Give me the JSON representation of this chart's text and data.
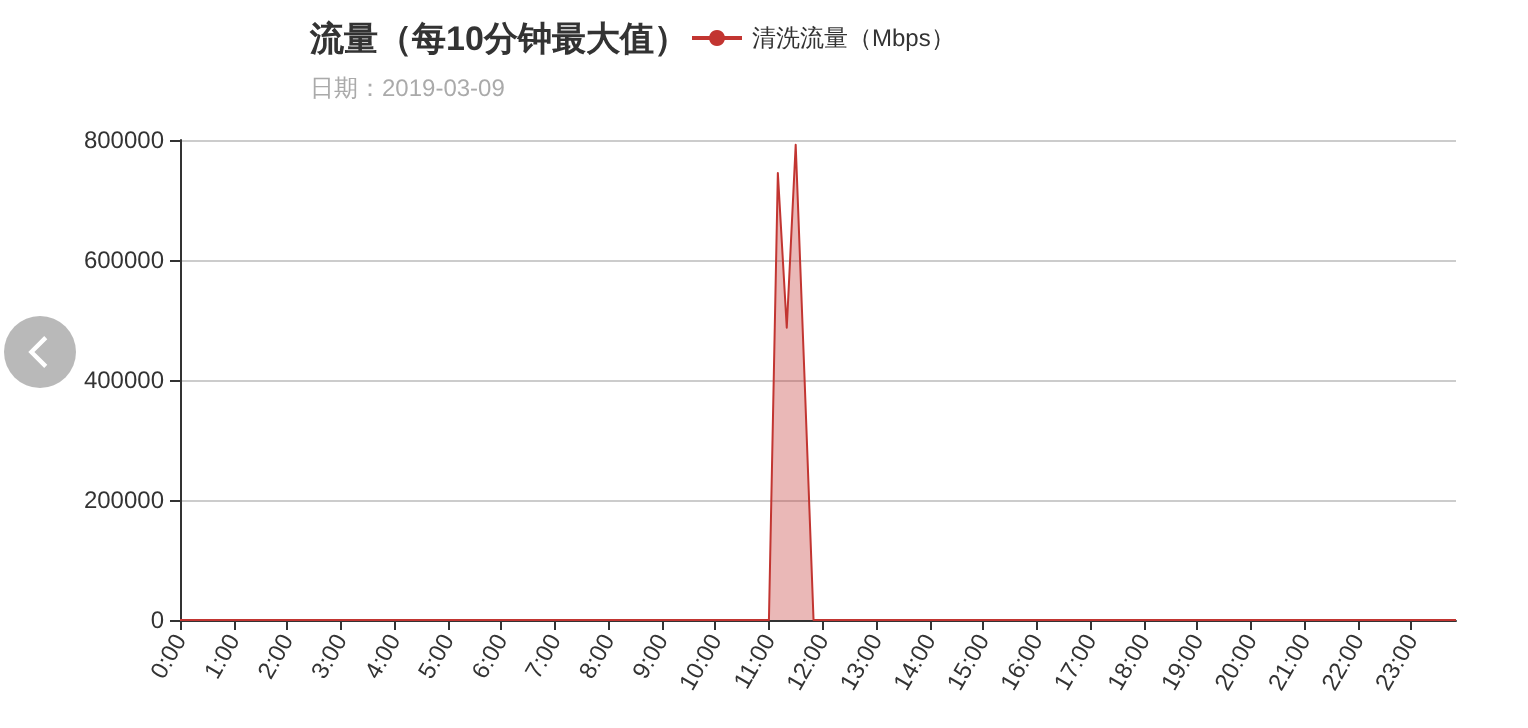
{
  "chart_data": {
    "type": "area",
    "title": "流量（每10分钟最大值）",
    "subtitle": "日期：2019-03-09",
    "categories": [
      "0:00",
      null,
      null,
      null,
      null,
      null,
      "1:00",
      null,
      null,
      null,
      null,
      null,
      "2:00",
      null,
      null,
      null,
      null,
      null,
      "3:00",
      null,
      null,
      null,
      null,
      null,
      "4:00",
      null,
      null,
      null,
      null,
      null,
      "5:00",
      null,
      null,
      null,
      null,
      null,
      "6:00",
      null,
      null,
      null,
      null,
      null,
      "7:00",
      null,
      null,
      null,
      null,
      null,
      "8:00",
      null,
      null,
      null,
      null,
      null,
      "9:00",
      null,
      null,
      null,
      null,
      null,
      "10:00",
      null,
      null,
      null,
      null,
      null,
      "11:00",
      null,
      null,
      null,
      null,
      null,
      "12:00",
      null,
      null,
      null,
      null,
      null,
      "13:00",
      null,
      null,
      null,
      null,
      null,
      "14:00",
      null,
      null,
      null,
      null,
      null,
      "15:00",
      null,
      null,
      null,
      null,
      null,
      "16:00",
      null,
      null,
      null,
      null,
      null,
      "17:00",
      null,
      null,
      null,
      null,
      null,
      "18:00",
      null,
      null,
      null,
      null,
      null,
      "19:00",
      null,
      null,
      null,
      null,
      null,
      "20:00",
      null,
      null,
      null,
      null,
      null,
      "21:00",
      null,
      null,
      null,
      null,
      null,
      "22:00",
      null,
      null,
      null,
      null,
      null,
      "23:00",
      null,
      null,
      null,
      null,
      null
    ],
    "series": [
      {
        "name": "清洗流量（Mbps）",
        "color": "#c23531",
        "values": [
          0,
          0,
          0,
          0,
          0,
          0,
          0,
          0,
          0,
          0,
          0,
          0,
          0,
          0,
          0,
          0,
          0,
          0,
          0,
          0,
          0,
          0,
          0,
          0,
          0,
          0,
          0,
          0,
          0,
          0,
          0,
          0,
          0,
          0,
          0,
          0,
          0,
          0,
          0,
          0,
          0,
          0,
          0,
          0,
          0,
          0,
          0,
          0,
          0,
          0,
          0,
          0,
          0,
          0,
          0,
          0,
          0,
          0,
          0,
          0,
          0,
          0,
          0,
          0,
          0,
          0,
          0,
          745000,
          487000,
          792000,
          400000,
          0,
          0,
          0,
          0,
          0,
          0,
          0,
          0,
          0,
          0,
          0,
          0,
          0,
          0,
          0,
          0,
          0,
          0,
          0,
          0,
          0,
          0,
          0,
          0,
          0,
          0,
          0,
          0,
          0,
          0,
          0,
          0,
          0,
          0,
          0,
          0,
          0,
          0,
          0,
          0,
          0,
          0,
          0,
          0,
          0,
          0,
          0,
          0,
          0,
          0,
          0,
          0,
          0,
          0,
          0,
          0,
          0,
          0,
          0,
          0,
          0,
          0,
          0,
          0,
          0,
          0,
          0,
          0,
          0,
          0,
          0,
          0,
          0
        ]
      }
    ],
    "ylim": [
      0,
      800000
    ],
    "yticks": [
      0,
      200000,
      400000,
      600000,
      800000
    ],
    "grid": "y",
    "legend": "top",
    "marker": "none"
  }
}
